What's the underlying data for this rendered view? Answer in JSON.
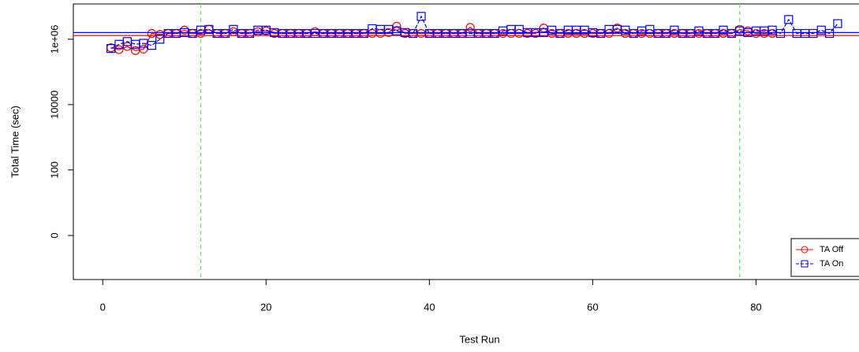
{
  "chart_data": {
    "type": "line",
    "x_label": "Test Run",
    "y_label": "Total Time (sec)",
    "y_scale": "log10(v+1)",
    "x": [
      1,
      2,
      3,
      4,
      5,
      6,
      7,
      8,
      9,
      10,
      11,
      12,
      13,
      14,
      15,
      16,
      17,
      18,
      19,
      20,
      21,
      22,
      23,
      24,
      25,
      26,
      27,
      28,
      29,
      30,
      31,
      32,
      33,
      34,
      35,
      36,
      37,
      38,
      39,
      40,
      41,
      42,
      43,
      44,
      45,
      46,
      47,
      48,
      49,
      50,
      51,
      52,
      53,
      54,
      55,
      56,
      57,
      58,
      59,
      60,
      61,
      62,
      63,
      64,
      65,
      66,
      67,
      68,
      69,
      70,
      71,
      72,
      73,
      74,
      75,
      76,
      77,
      78,
      79,
      80,
      81,
      82,
      83,
      84,
      85,
      86,
      87,
      88,
      89,
      90
    ],
    "series": [
      {
        "name": "TA Off",
        "color": "#ff0000",
        "marker": "circle",
        "dash": false,
        "values": [
          550000,
          480000,
          600000,
          450000,
          500000,
          1500000,
          1400000,
          1500000,
          1500000,
          1900000,
          1500000,
          1500000,
          2000000,
          1500000,
          1500000,
          1700000,
          1500000,
          1500000,
          1700000,
          1800000,
          1500000,
          1500000,
          1500000,
          1500000,
          1500000,
          1700000,
          1500000,
          1500000,
          1500000,
          1500000,
          1500000,
          1500000,
          1500000,
          1500000,
          1600000,
          2500000,
          1500000,
          1500000,
          1500000,
          1500000,
          1500000,
          1500000,
          1500000,
          1500000,
          2300000,
          1500000,
          1500000,
          1500000,
          1500000,
          1500000,
          1500000,
          1500000,
          1500000,
          2200000,
          1500000,
          1500000,
          1500000,
          1500000,
          1500000,
          1500000,
          1500000,
          1500000,
          2200000,
          1500000,
          1500000,
          1500000,
          1500000,
          1500000,
          1500000,
          1500000,
          1500000,
          1500000,
          1500000,
          1500000,
          1500000,
          1500000,
          1500000,
          2000000,
          1800000,
          1500000,
          1500000,
          1500000,
          null,
          null,
          null,
          null,
          null,
          null,
          null,
          null
        ],
        "mean": 1300000
      },
      {
        "name": "TA On",
        "color": "#0000ff",
        "marker": "square",
        "dash": true,
        "values": [
          520000,
          700000,
          850000,
          700000,
          750000,
          650000,
          1000000,
          1500000,
          1500000,
          1600000,
          1500000,
          1900000,
          2000000,
          1500000,
          1500000,
          2000000,
          1500000,
          1500000,
          1900000,
          1900000,
          1600000,
          1500000,
          1500000,
          1500000,
          1500000,
          1500000,
          1500000,
          1500000,
          1500000,
          1500000,
          1500000,
          1500000,
          2100000,
          2000000,
          2000000,
          1800000,
          1600000,
          1500000,
          5000000,
          1500000,
          1500000,
          1500000,
          1500000,
          1500000,
          1500000,
          1500000,
          1500000,
          1500000,
          1800000,
          2000000,
          2000000,
          1600000,
          1600000,
          1600000,
          1900000,
          1500000,
          1900000,
          1900000,
          1900000,
          1600000,
          1500000,
          2000000,
          2000000,
          1900000,
          1500000,
          1800000,
          2000000,
          1500000,
          1500000,
          1900000,
          1500000,
          1500000,
          1800000,
          1500000,
          1500000,
          1900000,
          1500000,
          1800000,
          1600000,
          1800000,
          1800000,
          1900000,
          1500000,
          4000000,
          1500000,
          1500000,
          1500000,
          1900000,
          1500000,
          3000000
        ],
        "mean": 1600000
      }
    ],
    "vlines": [
      12,
      78
    ],
    "vline_color": "#66ee66",
    "xlim": [
      -3.6,
      93
    ],
    "xticks": [
      0,
      20,
      40,
      60,
      80
    ],
    "ylim": [
      -0.955,
      12000000
    ],
    "yticks": [
      0,
      100,
      10000,
      {
        "value": 1000000,
        "label": "1e+06"
      }
    ],
    "legend": "bottom-right"
  }
}
